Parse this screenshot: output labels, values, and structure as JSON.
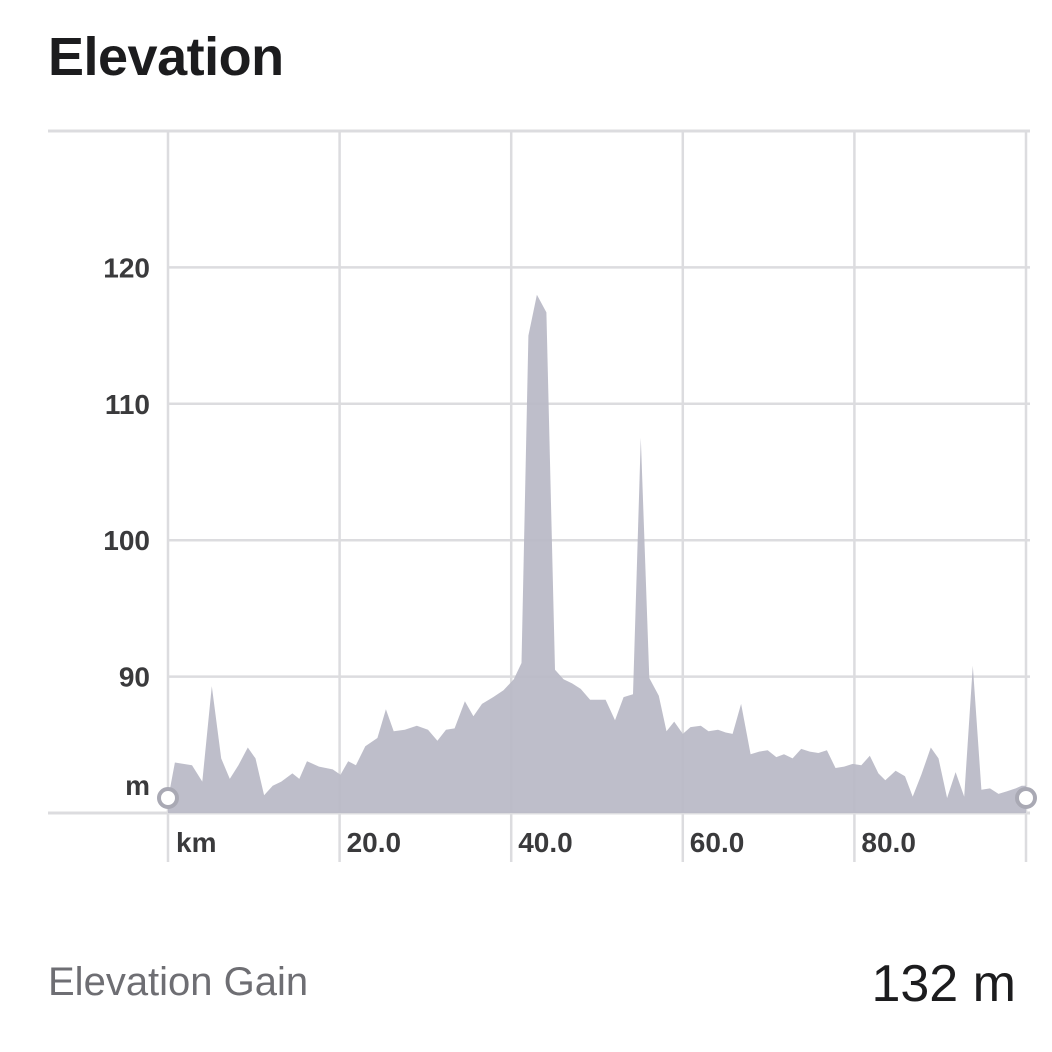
{
  "header": {
    "title": "Elevation"
  },
  "summary": {
    "label": "Elevation Gain",
    "value": "132 m"
  },
  "colors": {
    "area_fill": "#b9b8c5",
    "grid": "#dcdcdf",
    "axis_text": "#3a3a3c",
    "handle_stroke": "#a9a9b4"
  },
  "chart_data": {
    "type": "area",
    "x_unit_label": "km",
    "y_unit_label": "m",
    "xlim": [
      0,
      100
    ],
    "ylim": [
      80,
      130
    ],
    "x_ticks": [
      {
        "value": 20,
        "label": "20.0"
      },
      {
        "value": 40,
        "label": "40.0"
      },
      {
        "value": 60,
        "label": "60.0"
      },
      {
        "value": 80,
        "label": "80.0"
      }
    ],
    "y_ticks": [
      {
        "value": 90,
        "label": "90"
      },
      {
        "value": 100,
        "label": "100"
      },
      {
        "value": 110,
        "label": "110"
      },
      {
        "value": 120,
        "label": "120"
      }
    ],
    "grid": true,
    "range_handles": [
      0,
      100
    ],
    "series": [
      {
        "x": [
          0,
          0.8,
          2.8,
          4.0,
          5.1,
          6.2,
          7.2,
          8.2,
          9.3,
          10.2,
          11.2,
          12.2,
          13.2,
          14.5,
          15.3,
          16.2,
          17.6,
          19.2,
          20.1,
          21.0,
          21.9,
          23.0,
          24.4,
          25.4,
          26.3,
          27.6,
          29.0,
          30.3,
          31.4,
          32.4,
          33.4,
          34.6,
          35.6,
          36.6,
          37.9,
          39.1,
          40.3,
          41.2,
          42.0,
          43.0,
          44.1,
          45.1,
          46.1,
          47.1,
          48.1,
          49.2,
          50.1,
          51.0,
          52.1,
          53.1,
          54.2,
          55.1,
          56.1,
          57.2,
          58.1,
          59.0,
          60.0,
          60.9,
          62.1,
          63.0,
          64.1,
          65.0,
          65.8,
          66.8,
          67.9,
          68.9,
          69.9,
          70.9,
          71.8,
          72.8,
          73.8,
          74.8,
          75.8,
          76.8,
          77.8,
          78.8,
          79.8,
          80.8,
          81.8,
          82.8,
          83.6,
          84.8,
          85.9,
          86.8,
          87.8,
          88.9,
          89.8,
          90.8,
          91.8,
          92.8,
          93.8,
          94.8,
          95.8,
          96.8,
          97.8,
          98.8,
          99.5,
          100
        ],
        "y": [
          81,
          83.7,
          83.5,
          82.3,
          89.3,
          84.0,
          82.5,
          83.5,
          84.8,
          84.0,
          81.3,
          82.0,
          82.3,
          82.9,
          82.5,
          83.8,
          83.4,
          83.2,
          82.8,
          83.8,
          83.5,
          84.9,
          85.5,
          87.6,
          86.0,
          86.1,
          86.4,
          86.1,
          85.3,
          86.1,
          86.2,
          88.2,
          87.1,
          88.0,
          88.5,
          89.0,
          89.8,
          91.0,
          115.0,
          118.0,
          116.7,
          90.5,
          89.8,
          89.5,
          89.1,
          88.3,
          88.3,
          88.3,
          86.8,
          88.5,
          88.7,
          107.5,
          89.9,
          88.6,
          86.0,
          86.7,
          85.8,
          86.3,
          86.4,
          86.0,
          86.1,
          85.9,
          85.8,
          88.0,
          84.3,
          84.5,
          84.6,
          84.1,
          84.3,
          84.0,
          84.7,
          84.5,
          84.4,
          84.6,
          83.3,
          83.4,
          83.6,
          83.5,
          84.2,
          82.9,
          82.4,
          83.1,
          82.7,
          81.2,
          82.8,
          84.8,
          84.0,
          81.1,
          83.0,
          81.2,
          90.8,
          81.7,
          81.8,
          81.4,
          81.6,
          81.8,
          82.0,
          82.0
        ]
      }
    ]
  }
}
